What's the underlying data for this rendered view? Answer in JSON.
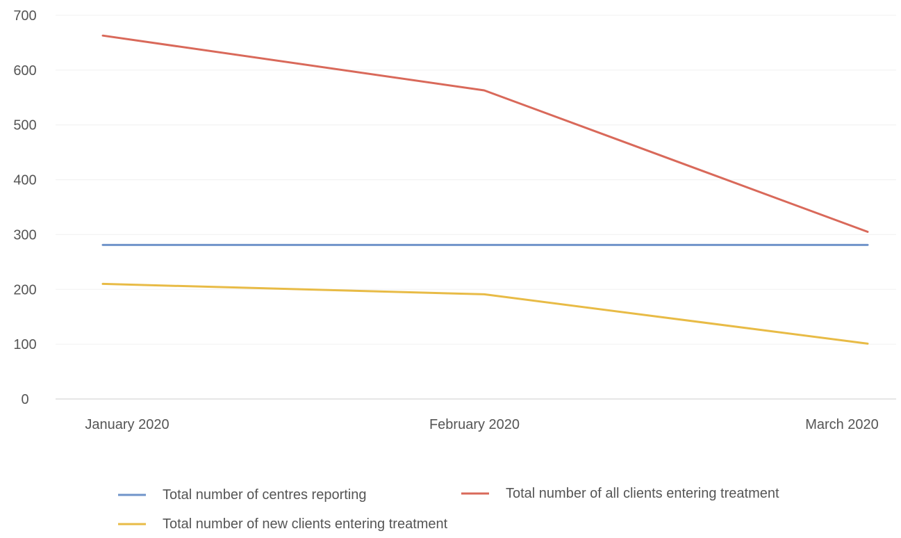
{
  "chart_data": {
    "type": "line",
    "categories": [
      "January 2020",
      "February 2020",
      "March 2020"
    ],
    "series": [
      {
        "name": "Total number of centres reporting",
        "values": [
          281,
          281,
          281
        ],
        "color": "#6f93c9"
      },
      {
        "name": "Total number of all clients entering treatment",
        "values": [
          663,
          563,
          305
        ],
        "color": "#d9695a"
      },
      {
        "name": "Total number of new clients entering treatment",
        "values": [
          210,
          191,
          101
        ],
        "color": "#e8bb46"
      }
    ],
    "yticks": [
      0,
      100,
      200,
      300,
      400,
      500,
      600,
      700
    ],
    "ylim": [
      0,
      700
    ],
    "grid": true,
    "legend": "bottom",
    "gridColor": "#f0f0f0",
    "axisColor": "#dddddd"
  }
}
